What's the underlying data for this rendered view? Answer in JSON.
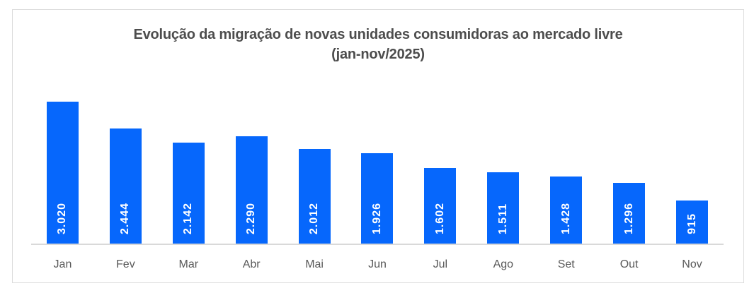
{
  "chart_data": {
    "type": "bar",
    "title": "Evolução da migração de novas unidades consumidoras ao mercado livre (jan-nov/2025)",
    "title_lines": [
      "Evolução da migração de novas unidades consumidoras ao mercado livre",
      "(jan-nov/2025)"
    ],
    "categories": [
      "Jan",
      "Fev",
      "Mar",
      "Abr",
      "Mai",
      "Jun",
      "Jul",
      "Ago",
      "Set",
      "Out",
      "Nov"
    ],
    "values": [
      3020,
      2444,
      2142,
      2290,
      2012,
      1926,
      1602,
      1511,
      1428,
      1296,
      915
    ],
    "value_labels": [
      "3.020",
      "2.444",
      "2.142",
      "2.290",
      "2.012",
      "1.926",
      "1.602",
      "1.511",
      "1.428",
      "1.296",
      "915"
    ],
    "xlabel": "",
    "ylabel": "",
    "ylim": [
      0,
      3100
    ],
    "grid": false,
    "legend_position": "none",
    "value_labels_rotated_degrees": -90,
    "colors": {
      "bar": "#0667fc",
      "value_label": "#ffffff",
      "title": "#4d4d4d",
      "category_label": "#595959",
      "axis_line": "#d9d9d9",
      "frame_border": "#dcdcdc",
      "background": "#ffffff"
    }
  }
}
